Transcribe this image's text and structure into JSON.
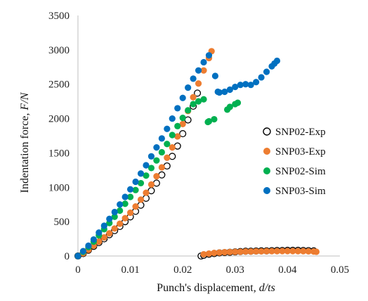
{
  "chart_data": {
    "type": "scatter",
    "title": "",
    "xlabel": {
      "prefix": "Punch's displacement, ",
      "italic": "d/ts"
    },
    "ylabel": {
      "prefix": "Indentation force, ",
      "italic": "F/N"
    },
    "xlim": [
      0,
      0.05
    ],
    "ylim": [
      0,
      3500
    ],
    "x_ticks": [
      0,
      0.01,
      0.02,
      0.03,
      0.04,
      0.05
    ],
    "x_tick_labels": [
      "0",
      "0.01",
      "0.02",
      "0.03",
      "0.04",
      "0.05"
    ],
    "y_ticks": [
      0,
      500,
      1000,
      1500,
      2000,
      2500,
      3000,
      3500
    ],
    "y_tick_labels": [
      "0",
      "500",
      "1000",
      "1500",
      "2000",
      "2500",
      "3000",
      "3500"
    ],
    "grid": false,
    "legend_position": "right",
    "series": [
      {
        "name": "SNP02-Exp",
        "color": "#000000",
        "marker": "hollow-circle",
        "points": [
          [
            0.0,
            0
          ],
          [
            0.001,
            35
          ],
          [
            0.002,
            85
          ],
          [
            0.003,
            140
          ],
          [
            0.004,
            195
          ],
          [
            0.005,
            250
          ],
          [
            0.006,
            310
          ],
          [
            0.007,
            370
          ],
          [
            0.008,
            430
          ],
          [
            0.009,
            500
          ],
          [
            0.01,
            570
          ],
          [
            0.011,
            650
          ],
          [
            0.012,
            740
          ],
          [
            0.013,
            840
          ],
          [
            0.014,
            950
          ],
          [
            0.015,
            1060
          ],
          [
            0.016,
            1180
          ],
          [
            0.017,
            1310
          ],
          [
            0.018,
            1450
          ],
          [
            0.019,
            1600
          ],
          [
            0.02,
            1780
          ],
          [
            0.021,
            1980
          ],
          [
            0.022,
            2180
          ],
          [
            0.0228,
            2370
          ],
          [
            0.0235,
            0
          ],
          [
            0.024,
            10
          ],
          [
            0.025,
            25
          ],
          [
            0.026,
            35
          ],
          [
            0.027,
            45
          ],
          [
            0.028,
            50
          ],
          [
            0.029,
            55
          ],
          [
            0.03,
            60
          ],
          [
            0.031,
            65
          ],
          [
            0.032,
            70
          ],
          [
            0.033,
            70
          ],
          [
            0.034,
            72
          ],
          [
            0.035,
            75
          ],
          [
            0.036,
            75
          ],
          [
            0.037,
            78
          ],
          [
            0.038,
            80
          ],
          [
            0.039,
            80
          ],
          [
            0.04,
            82
          ],
          [
            0.041,
            82
          ],
          [
            0.042,
            82
          ],
          [
            0.043,
            80
          ],
          [
            0.044,
            78
          ],
          [
            0.045,
            75
          ]
        ]
      },
      {
        "name": "SNP03-Exp",
        "color": "#ED7D31",
        "marker": "filled-circle",
        "points": [
          [
            0.0,
            0
          ],
          [
            0.001,
            40
          ],
          [
            0.002,
            90
          ],
          [
            0.003,
            150
          ],
          [
            0.004,
            210
          ],
          [
            0.005,
            270
          ],
          [
            0.006,
            330
          ],
          [
            0.007,
            400
          ],
          [
            0.008,
            470
          ],
          [
            0.009,
            550
          ],
          [
            0.01,
            630
          ],
          [
            0.011,
            720
          ],
          [
            0.012,
            820
          ],
          [
            0.013,
            920
          ],
          [
            0.014,
            1040
          ],
          [
            0.015,
            1160
          ],
          [
            0.016,
            1290
          ],
          [
            0.017,
            1430
          ],
          [
            0.018,
            1580
          ],
          [
            0.019,
            1740
          ],
          [
            0.02,
            1920
          ],
          [
            0.021,
            2110
          ],
          [
            0.022,
            2310
          ],
          [
            0.023,
            2510
          ],
          [
            0.024,
            2700
          ],
          [
            0.025,
            2880
          ],
          [
            0.0255,
            2980
          ],
          [
            0.024,
            25
          ],
          [
            0.025,
            35
          ],
          [
            0.026,
            45
          ],
          [
            0.027,
            50
          ],
          [
            0.028,
            55
          ],
          [
            0.029,
            58
          ],
          [
            0.03,
            60
          ],
          [
            0.031,
            62
          ],
          [
            0.032,
            65
          ],
          [
            0.033,
            65
          ],
          [
            0.034,
            68
          ],
          [
            0.035,
            68
          ],
          [
            0.036,
            70
          ],
          [
            0.037,
            70
          ],
          [
            0.038,
            70
          ],
          [
            0.039,
            72
          ],
          [
            0.04,
            72
          ],
          [
            0.041,
            72
          ],
          [
            0.042,
            70
          ],
          [
            0.043,
            70
          ],
          [
            0.044,
            68
          ],
          [
            0.045,
            65
          ],
          [
            0.0455,
            62
          ]
        ]
      },
      {
        "name": "SNP02-Sim",
        "color": "#00B050",
        "marker": "filled-circle",
        "points": [
          [
            0.0,
            0
          ],
          [
            0.001,
            60
          ],
          [
            0.002,
            130
          ],
          [
            0.003,
            210
          ],
          [
            0.004,
            300
          ],
          [
            0.005,
            390
          ],
          [
            0.006,
            480
          ],
          [
            0.007,
            570
          ],
          [
            0.008,
            660
          ],
          [
            0.009,
            760
          ],
          [
            0.01,
            860
          ],
          [
            0.011,
            960
          ],
          [
            0.012,
            1060
          ],
          [
            0.013,
            1170
          ],
          [
            0.014,
            1280
          ],
          [
            0.015,
            1390
          ],
          [
            0.016,
            1510
          ],
          [
            0.017,
            1630
          ],
          [
            0.018,
            1760
          ],
          [
            0.019,
            1890
          ],
          [
            0.02,
            2010
          ],
          [
            0.021,
            2120
          ],
          [
            0.022,
            2210
          ],
          [
            0.023,
            2250
          ],
          [
            0.024,
            2280
          ],
          [
            0.0248,
            1950
          ],
          [
            0.025,
            1960
          ],
          [
            0.026,
            1990
          ],
          [
            0.0285,
            2130
          ],
          [
            0.029,
            2170
          ],
          [
            0.03,
            2210
          ],
          [
            0.0305,
            2230
          ]
        ]
      },
      {
        "name": "SNP03-Sim",
        "color": "#0070C0",
        "marker": "filled-circle",
        "points": [
          [
            0.0,
            0
          ],
          [
            0.001,
            70
          ],
          [
            0.002,
            150
          ],
          [
            0.003,
            240
          ],
          [
            0.004,
            340
          ],
          [
            0.005,
            440
          ],
          [
            0.006,
            540
          ],
          [
            0.007,
            640
          ],
          [
            0.008,
            750
          ],
          [
            0.009,
            860
          ],
          [
            0.01,
            970
          ],
          [
            0.011,
            1080
          ],
          [
            0.012,
            1200
          ],
          [
            0.013,
            1320
          ],
          [
            0.014,
            1450
          ],
          [
            0.015,
            1580
          ],
          [
            0.016,
            1710
          ],
          [
            0.017,
            1850
          ],
          [
            0.018,
            2000
          ],
          [
            0.019,
            2150
          ],
          [
            0.02,
            2300
          ],
          [
            0.021,
            2450
          ],
          [
            0.022,
            2580
          ],
          [
            0.023,
            2700
          ],
          [
            0.024,
            2820
          ],
          [
            0.025,
            2920
          ],
          [
            0.0262,
            2620
          ],
          [
            0.0267,
            2390
          ],
          [
            0.027,
            2380
          ],
          [
            0.028,
            2390
          ],
          [
            0.029,
            2420
          ],
          [
            0.03,
            2460
          ],
          [
            0.031,
            2490
          ],
          [
            0.032,
            2500
          ],
          [
            0.033,
            2490
          ],
          [
            0.034,
            2530
          ],
          [
            0.035,
            2600
          ],
          [
            0.036,
            2680
          ],
          [
            0.037,
            2760
          ],
          [
            0.0375,
            2800
          ],
          [
            0.038,
            2840
          ]
        ]
      }
    ]
  }
}
